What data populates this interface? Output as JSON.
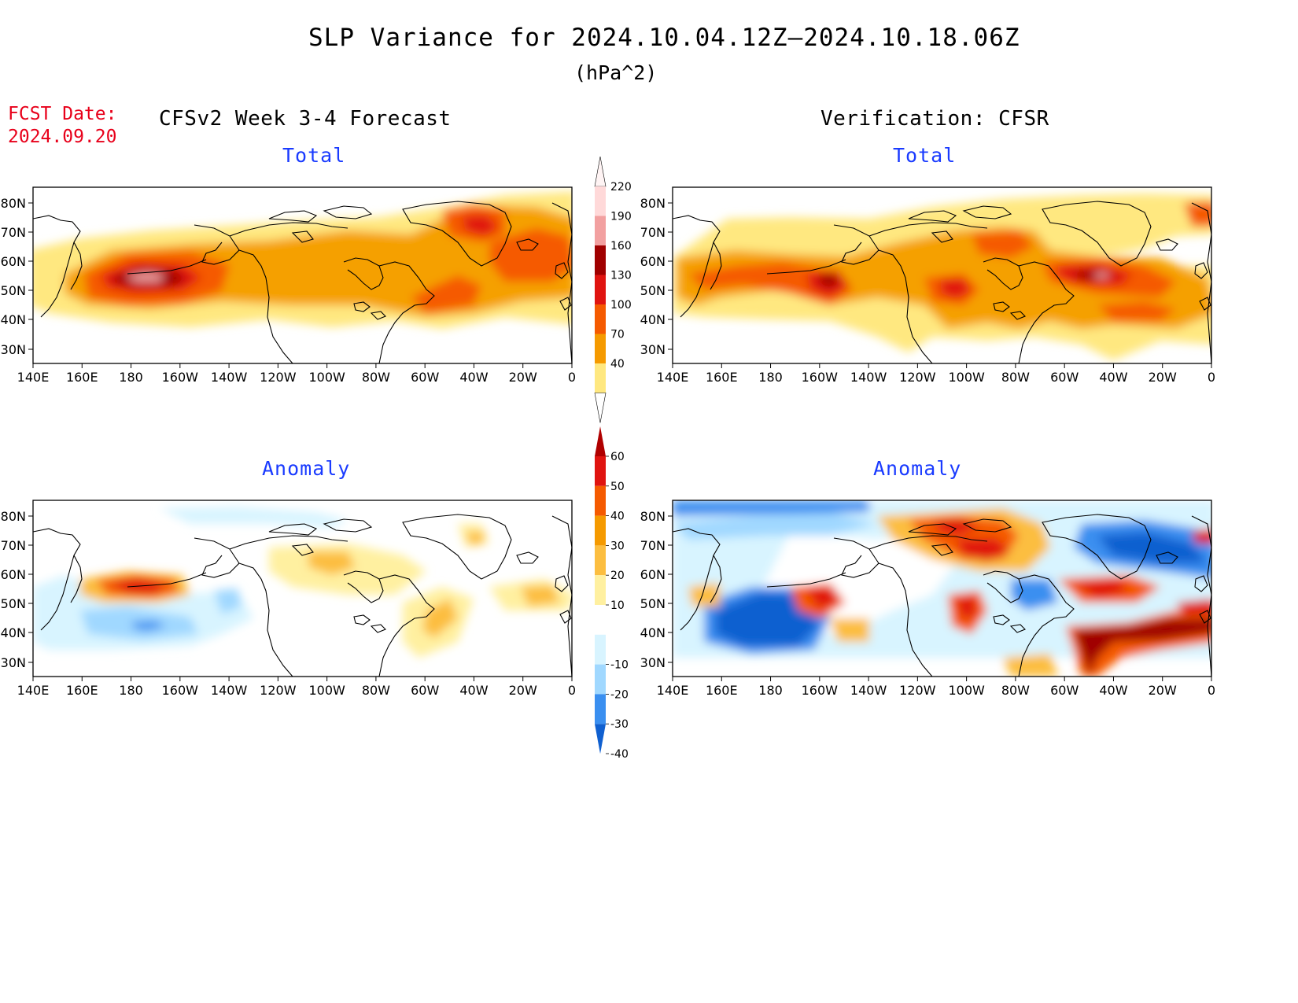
{
  "title": "SLP Variance for 2024.10.04.12Z—2024.10.18.06Z",
  "units": "(hPa^2)",
  "fcst_label": "FCST Date:",
  "fcst_date": "2024.09.20",
  "left_header": "CFSv2 Week 3-4 Forecast",
  "right_header": "Verification: CFSR",
  "panels": {
    "fcst_total": "Total",
    "cfsr_total": "Total",
    "fcst_anom": "Anomaly",
    "cfsr_anom": "Anomaly"
  },
  "lat_ticks": [
    "80N",
    "70N",
    "60N",
    "50N",
    "40N",
    "30N"
  ],
  "lon_ticks": [
    "140E",
    "160E",
    "180",
    "160W",
    "140W",
    "120W",
    "100W",
    "80W",
    "60W",
    "40W",
    "20W",
    "0"
  ],
  "total_colorbar": {
    "labels": [
      "220",
      "190",
      "160",
      "130",
      "100",
      "70",
      "40"
    ],
    "colors": [
      "#ffd9d9",
      "#f2a0a0",
      "#a00000",
      "#e01410",
      "#f55a00",
      "#f59a00",
      "#ffe880"
    ]
  },
  "anomaly_colorbar": {
    "labels": [
      "60",
      "50",
      "40",
      "30",
      "20",
      "10",
      "-10",
      "-20",
      "-30",
      "-40"
    ],
    "colors": [
      "#b00000",
      "#e01410",
      "#f55a00",
      "#f59a00",
      "#fcbe40",
      "#fff0a0",
      "#ffffff",
      "#d8f4ff",
      "#a0d8ff",
      "#3a8ff0",
      "#1060d0"
    ]
  },
  "chart_data": {
    "type": "heatmap",
    "x_range": [
      "140E",
      "0"
    ],
    "y_range": [
      "25N",
      "85N"
    ],
    "panels": [
      "CFSv2 Week 3-4 Forecast Total",
      "CFSv2 Week 3-4 Forecast Anomaly",
      "Verification: CFSR Total",
      "Verification: CFSR Anomaly"
    ]
  }
}
